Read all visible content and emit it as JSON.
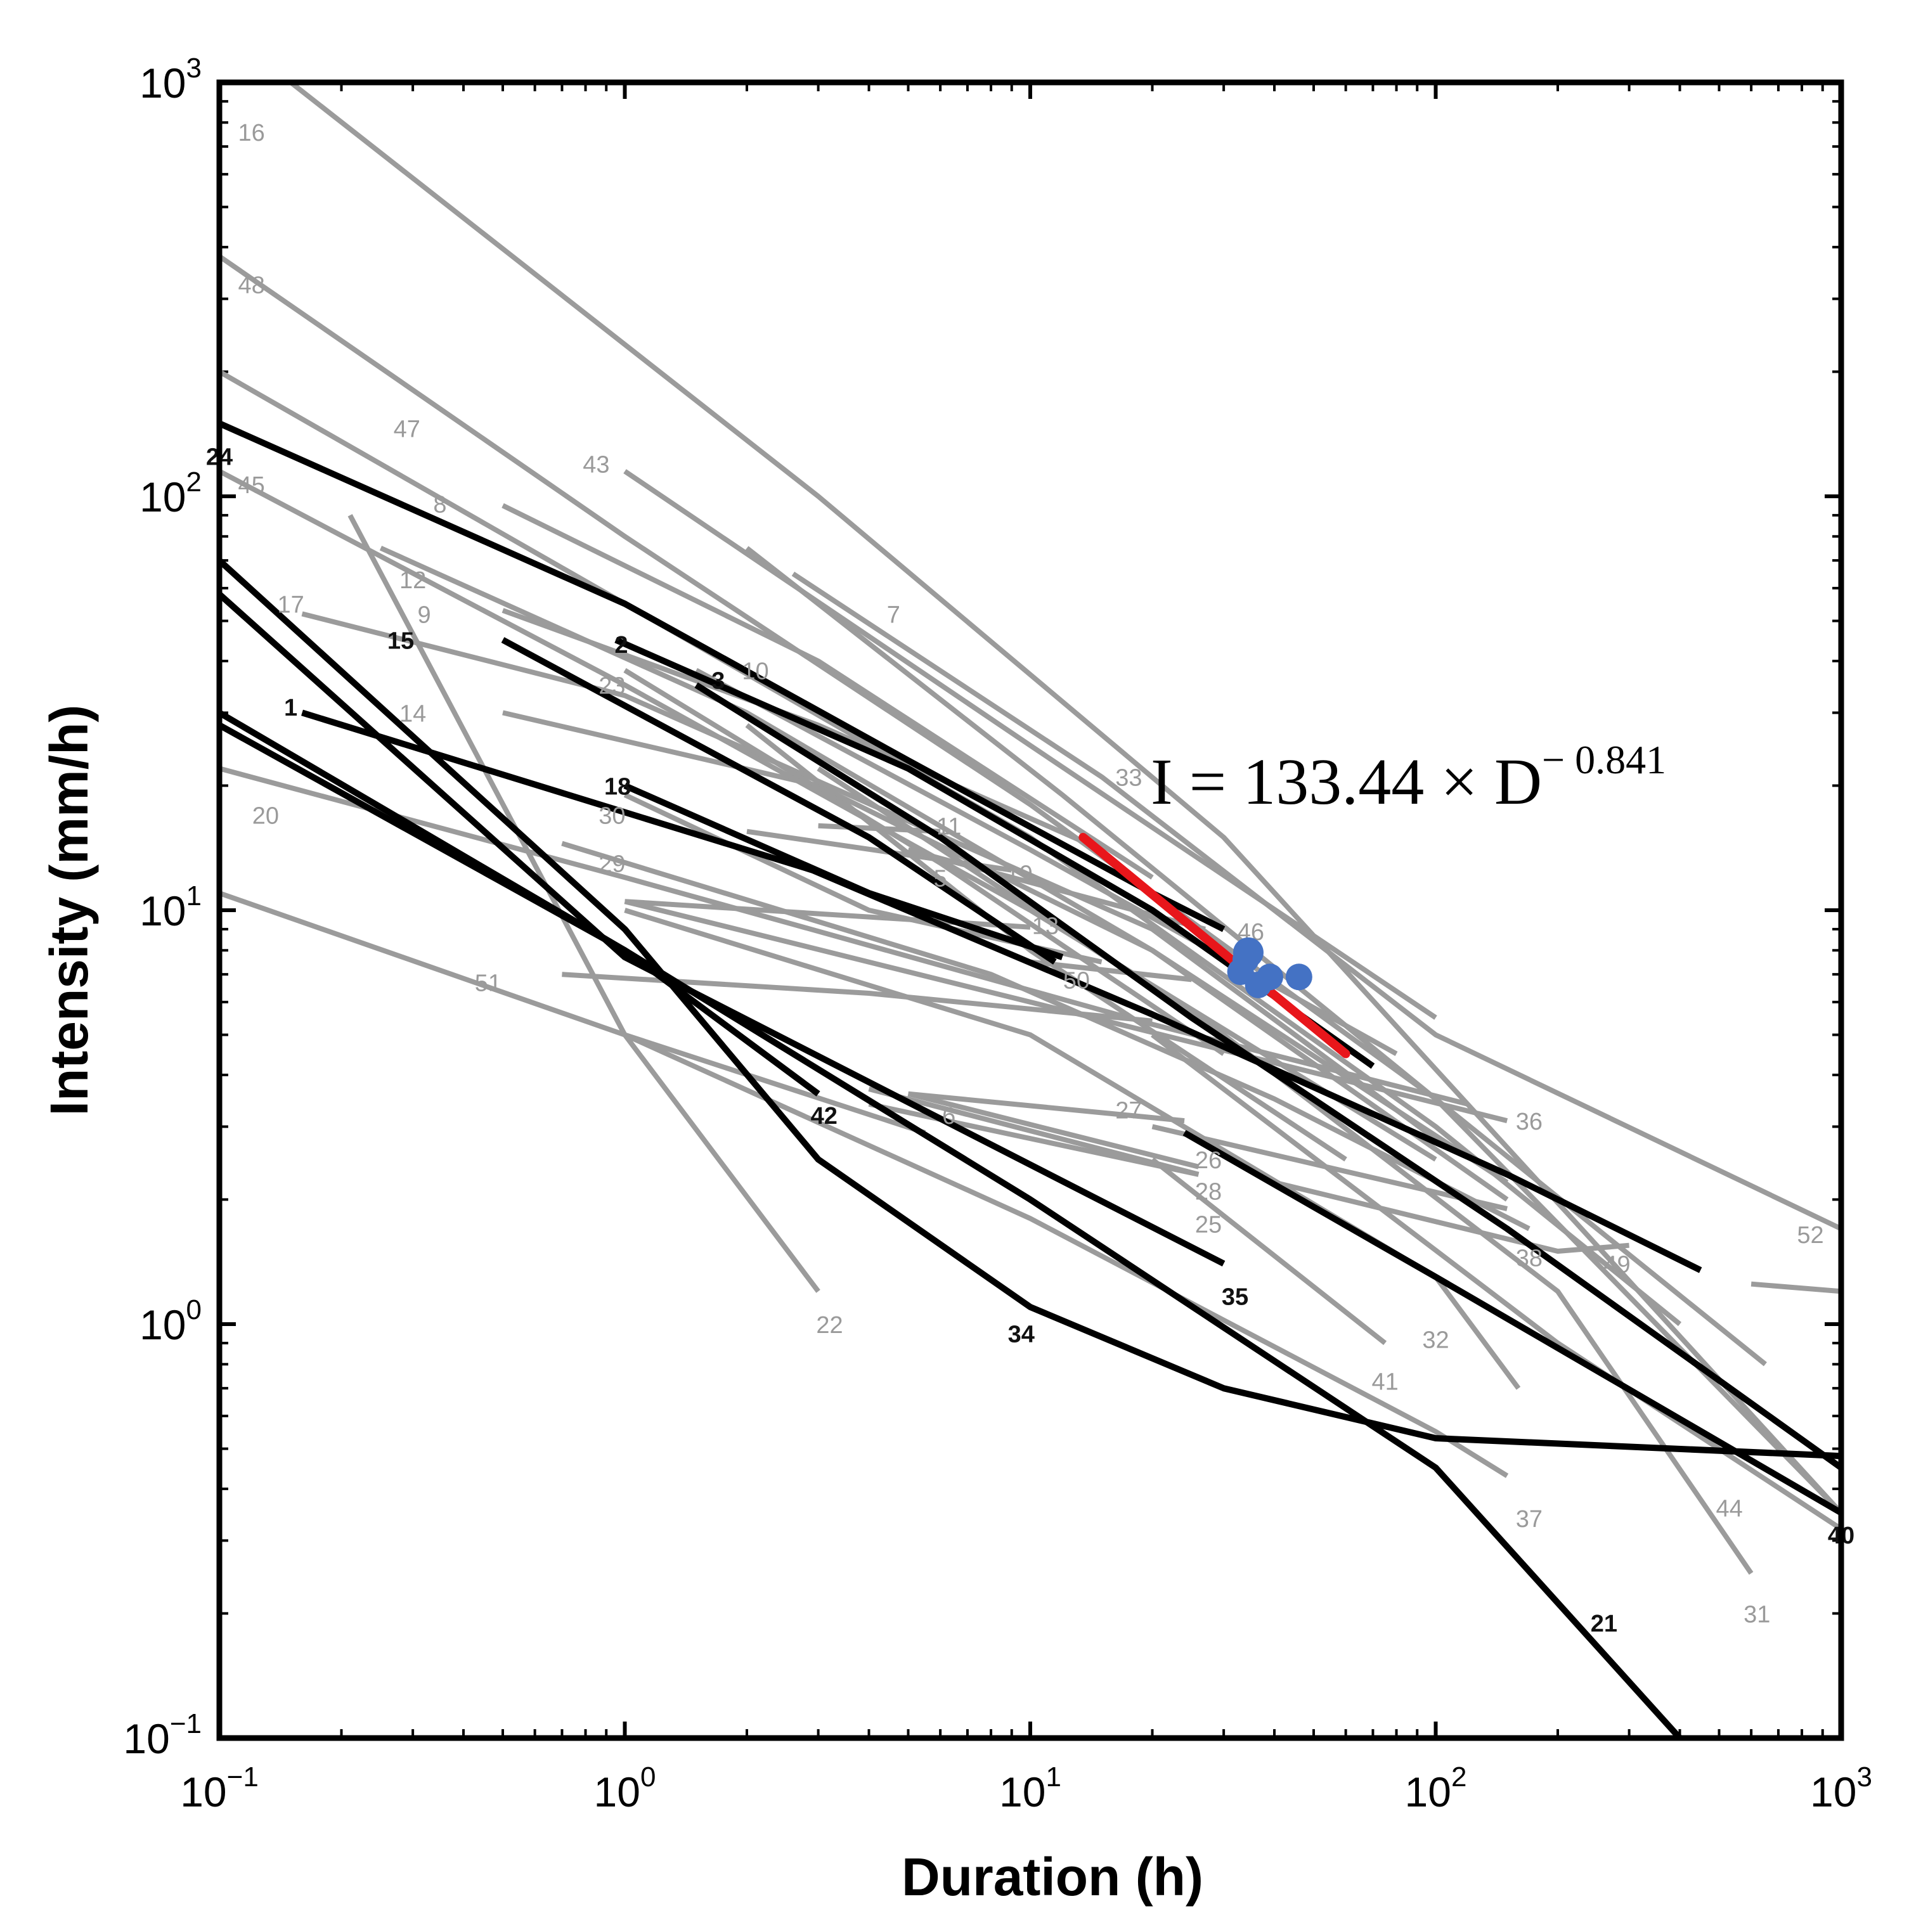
{
  "chart_data": {
    "type": "line",
    "scale": "log-log",
    "xlabel": "Duration (h)",
    "ylabel": "Intensity (mm/h)",
    "xlim": [
      0.1,
      1000
    ],
    "ylim": [
      0.1,
      1000
    ],
    "x_ticks": [
      {
        "base": "10",
        "exp": "−1"
      },
      {
        "base": "10",
        "exp": "0"
      },
      {
        "base": "10",
        "exp": "1"
      },
      {
        "base": "10",
        "exp": "2"
      },
      {
        "base": "10",
        "exp": "3"
      }
    ],
    "y_ticks": [
      {
        "base": "10",
        "exp": "−1"
      },
      {
        "base": "10",
        "exp": "0"
      },
      {
        "base": "10",
        "exp": "1"
      },
      {
        "base": "10",
        "exp": "2"
      },
      {
        "base": "10",
        "exp": "3"
      }
    ],
    "equation": {
      "main": "I = 133.44 × D",
      "exponent": "− 0.841"
    },
    "fit_line": {
      "x": [
        13.5,
        60
      ],
      "y": [
        15.0,
        4.5
      ],
      "color": "#e8161b"
    },
    "observed_points": {
      "color": "#4472c4",
      "points": [
        [
          34,
          7.6
        ],
        [
          33,
          7.1
        ],
        [
          36.5,
          6.6
        ],
        [
          39,
          6.9
        ],
        [
          46,
          6.9
        ],
        [
          34.5,
          7.9
        ]
      ]
    },
    "series": [
      {
        "name": "1",
        "color": "black",
        "x": [
          0.16,
          2.9,
          20,
          150,
          450
        ],
        "y": [
          30,
          12.5,
          5.6,
          2.3,
          1.35
        ],
        "label_pos": [
          0.15,
          31
        ]
      },
      {
        "name": "2",
        "color": "black",
        "x": [
          0.95,
          5,
          20,
          70
        ],
        "y": [
          45,
          22,
          10,
          4.2
        ],
        "label_pos": [
          0.98,
          44
        ]
      },
      {
        "name": "3",
        "color": "black",
        "x": [
          1.5,
          6,
          25,
          150,
          1000
        ],
        "y": [
          35,
          15,
          5.5,
          1.7,
          0.45
        ],
        "label_pos": [
          1.7,
          36
        ]
      },
      {
        "name": "5",
        "color": "gray",
        "x": [
          2,
          10,
          60
        ],
        "y": [
          28,
          8,
          2.5
        ],
        "label_pos": [
          6,
          12
        ]
      },
      {
        "name": "6",
        "color": "gray",
        "x": [
          1,
          5.5
        ],
        "y": [
          5,
          2.9
        ],
        "label_pos": [
          6.3,
          3.2
        ]
      },
      {
        "name": "7",
        "color": "gray",
        "x": [
          2,
          12,
          100,
          650
        ],
        "y": [
          75,
          19,
          3.5,
          0.8
        ],
        "label_pos": [
          4.6,
          52
        ]
      },
      {
        "name": "8",
        "color": "gray",
        "x": [
          0.5,
          3,
          20
        ],
        "y": [
          95,
          40,
          12
        ],
        "label_pos": [
          0.35,
          96
        ]
      },
      {
        "name": "9",
        "color": "gray",
        "x": [
          0.5,
          3,
          15
        ],
        "y": [
          53,
          28,
          14
        ],
        "label_pos": [
          0.32,
          52
        ]
      },
      {
        "name": "10",
        "color": "gray",
        "x": [
          1.5,
          10,
          80
        ],
        "y": [
          38,
          14,
          4.5
        ],
        "label_pos": [
          2.1,
          38
        ]
      },
      {
        "name": "11",
        "color": "gray",
        "x": [
          3,
          6
        ],
        "y": [
          16,
          15.5
        ],
        "label_pos": [
          6.3,
          16
        ]
      },
      {
        "name": "12",
        "color": "gray",
        "x": [
          0.25,
          2,
          20,
          150
        ],
        "y": [
          75,
          30,
          8,
          2
        ],
        "label_pos": [
          0.3,
          63
        ]
      },
      {
        "name": "13",
        "color": "gray",
        "x": [
          1,
          10
        ],
        "y": [
          10.5,
          9.1
        ],
        "label_pos": [
          10.9,
          9.2
        ]
      },
      {
        "name": "14",
        "color": "gray",
        "x": [
          0.5,
          3,
          20,
          150
        ],
        "y": [
          30,
          20,
          8,
          2.2
        ],
        "label_pos": [
          0.3,
          30
        ]
      },
      {
        "name": "15",
        "color": "black",
        "x": [
          0.5,
          4,
          11.5
        ],
        "y": [
          45,
          15,
          7.5
        ],
        "label_pos": [
          0.28,
          45
        ]
      },
      {
        "name": "16",
        "color": "gray",
        "x": [
          0.15,
          3,
          30,
          1000
        ],
        "y": [
          1000,
          100,
          15,
          0.35
        ],
        "label_pos": [
          0.12,
          760
        ]
      },
      {
        "name": "17",
        "color": "gray",
        "x": [
          0.16,
          1,
          20,
          100
        ],
        "y": [
          52,
          33,
          9,
          2.8
        ],
        "label_pos": [
          0.15,
          55
        ]
      },
      {
        "name": "18",
        "color": "black",
        "x": [
          1,
          4,
          12
        ],
        "y": [
          20,
          11,
          7.7
        ],
        "label_pos": [
          0.96,
          20
        ]
      },
      {
        "name": "19",
        "color": "gray",
        "x": [
          2,
          9
        ],
        "y": [
          15.5,
          12.5
        ],
        "label_pos": [
          9.4,
          12.3
        ]
      },
      {
        "name": "20",
        "color": "gray",
        "x": [
          0.1,
          1,
          20,
          120
        ],
        "y": [
          22,
          12,
          5.3,
          3.4
        ],
        "label_pos": [
          0.13,
          17
        ]
      },
      {
        "name": "21",
        "color": "black",
        "x": [
          0.1,
          1,
          10,
          100,
          400
        ],
        "y": [
          28,
          8,
          2,
          0.45,
          0.1
        ],
        "label_pos": [
          260,
          0.19
        ]
      },
      {
        "name": "22",
        "color": "gray",
        "x": [
          0.21,
          1,
          3
        ],
        "y": [
          90,
          5,
          1.2
        ],
        "label_pos": [
          3.2,
          1.0
        ]
      },
      {
        "name": "23",
        "color": "gray",
        "x": [
          1,
          6,
          30
        ],
        "y": [
          38,
          13,
          4.5
        ],
        "label_pos": [
          0.93,
          35
        ]
      },
      {
        "name": "24",
        "color": "black",
        "x": [
          0.1,
          1,
          5,
          20,
          30
        ],
        "y": [
          150,
          55,
          23,
          11,
          9
        ],
        "label_pos": [
          0.1,
          125
        ]
      },
      {
        "name": "25",
        "color": "gray",
        "x": [
          4,
          26
        ],
        "y": [
          3.4,
          2.3
        ],
        "label_pos": [
          27.5,
          1.75
        ]
      },
      {
        "name": "26",
        "color": "gray",
        "x": [
          5,
          26
        ],
        "y": [
          3.6,
          2.4
        ],
        "label_pos": [
          27.5,
          2.5
        ]
      },
      {
        "name": "27",
        "color": "gray",
        "x": [
          5,
          24
        ],
        "y": [
          3.6,
          3.1
        ],
        "label_pos": [
          17.5,
          3.3
        ]
      },
      {
        "name": "28",
        "color": "gray",
        "x": [
          4,
          26
        ],
        "y": [
          3.7,
          2.3
        ],
        "label_pos": [
          27.5,
          2.1
        ]
      },
      {
        "name": "29",
        "color": "gray",
        "x": [
          0.7,
          8,
          40,
          170
        ],
        "y": [
          14.5,
          7,
          3.5,
          1.7
        ],
        "label_pos": [
          0.93,
          13
        ]
      },
      {
        "name": "30",
        "color": "gray",
        "x": [
          1,
          4,
          15
        ],
        "y": [
          19,
          10,
          7.5
        ],
        "label_pos": [
          0.93,
          17
        ]
      },
      {
        "name": "31",
        "color": "gray",
        "x": [
          3,
          30,
          200,
          600
        ],
        "y": [
          22,
          5,
          1.2,
          0.25
        ],
        "label_pos": [
          620,
          0.2
        ]
      },
      {
        "name": "32",
        "color": "gray",
        "x": [
          1,
          10,
          100,
          160
        ],
        "y": [
          10,
          5,
          1.3,
          0.7
        ],
        "label_pos": [
          100,
          0.92
        ]
      },
      {
        "name": "33",
        "color": "gray",
        "x": [
          2.6,
          15,
          100,
          1000
        ],
        "y": [
          65,
          21,
          5,
          1.7
        ],
        "label_pos": [
          17.5,
          21
        ]
      },
      {
        "name": "34",
        "color": "black",
        "x": [
          0.1,
          1,
          3,
          10,
          30,
          100,
          1000
        ],
        "y": [
          70,
          9,
          2.5,
          1.1,
          0.7,
          0.53,
          0.48
        ],
        "label_pos": [
          9.5,
          0.95
        ]
      },
      {
        "name": "35",
        "color": "black",
        "x": [
          0.1,
          1,
          30
        ],
        "y": [
          58,
          7.7,
          1.4
        ],
        "label_pos": [
          32,
          1.17
        ]
      },
      {
        "name": "36",
        "color": "gray",
        "x": [
          1,
          10,
          150
        ],
        "y": [
          10.5,
          6,
          3.1
        ],
        "label_pos": [
          170,
          3.1
        ]
      },
      {
        "name": "37",
        "color": "gray",
        "x": [
          0.1,
          1,
          10,
          100,
          150
        ],
        "y": [
          11,
          5,
          1.8,
          0.55,
          0.43
        ],
        "label_pos": [
          170,
          0.34
        ]
      },
      {
        "name": "38",
        "color": "gray",
        "x": [
          20,
          150
        ],
        "y": [
          3,
          1.9
        ],
        "label_pos": [
          170,
          1.45
        ]
      },
      {
        "name": "40",
        "color": "black",
        "x": [
          24,
          100,
          1000
        ],
        "y": [
          2.9,
          1.3,
          0.35
        ],
        "label_pos": [
          1000,
          0.31
        ]
      },
      {
        "name": "41",
        "color": "gray",
        "x": [
          20,
          75
        ],
        "y": [
          2.5,
          0.9
        ],
        "label_pos": [
          75,
          0.73
        ]
      },
      {
        "name": "42",
        "color": "black",
        "x": [
          0.1,
          1,
          3
        ],
        "y": [
          30,
          8,
          3.6
        ],
        "label_pos": [
          3.1,
          3.2
        ]
      },
      {
        "name": "43",
        "color": "gray",
        "x": [
          1,
          10,
          100
        ],
        "y": [
          115,
          25,
          5.5
        ],
        "label_pos": [
          0.85,
          120
        ]
      },
      {
        "name": "44",
        "color": "gray",
        "x": [
          20,
          200,
          1000
        ],
        "y": [
          5,
          0.9,
          0.32
        ],
        "label_pos": [
          530,
          0.36
        ]
      },
      {
        "name": "45",
        "color": "gray",
        "x": [
          0.1,
          1,
          10,
          100
        ],
        "y": [
          115,
          35,
          10,
          2.5
        ],
        "label_pos": [
          0.12,
          107
        ]
      },
      {
        "name": "46",
        "color": "gray",
        "x": [
          5,
          27
        ],
        "y": [
          14,
          9
        ],
        "label_pos": [
          35,
          8.9
        ]
      },
      {
        "name": "47",
        "color": "gray",
        "x": [
          0.1,
          1,
          10,
          100,
          400
        ],
        "y": [
          200,
          55,
          15,
          3,
          1
        ],
        "label_pos": [
          0.29,
          146
        ]
      },
      {
        "name": "48",
        "color": "gray",
        "x": [
          0.1,
          1,
          10,
          100,
          1000
        ],
        "y": [
          380,
          80,
          18,
          3.5,
          0.35
        ],
        "label_pos": [
          0.12,
          325
        ]
      },
      {
        "name": "49",
        "color": "gray",
        "x": [
          40,
          200,
          300
        ],
        "y": [
          2.2,
          1.5,
          1.55
        ],
        "label_pos": [
          280,
          1.4
        ]
      },
      {
        "name": "50",
        "color": "gray",
        "x": [
          10,
          25
        ],
        "y": [
          7.5,
          6.8
        ],
        "label_pos": [
          13,
          6.8
        ]
      },
      {
        "name": "51",
        "color": "gray",
        "x": [
          0.7,
          4,
          20
        ],
        "y": [
          7,
          6.3,
          5.4
        ],
        "label_pos": [
          0.46,
          6.7
        ]
      },
      {
        "name": "52",
        "color": "gray",
        "x": [
          600,
          1000
        ],
        "y": [
          1.25,
          1.2
        ],
        "label_pos": [
          840,
          1.65
        ]
      }
    ]
  }
}
